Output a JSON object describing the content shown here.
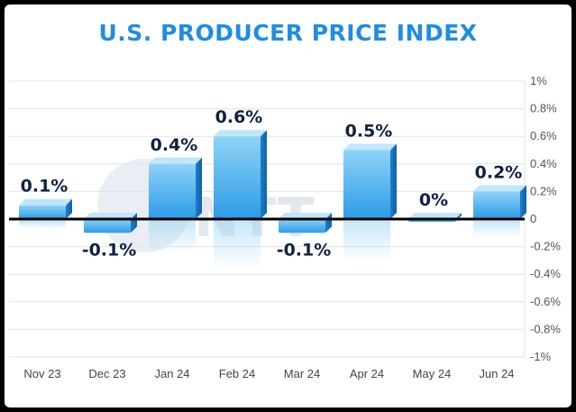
{
  "chart_data": {
    "type": "bar",
    "title": "U.S. PRODUCER PRICE INDEX",
    "categories": [
      "Nov 23",
      "Dec 23",
      "Jan 24",
      "Feb 24",
      "Mar 24",
      "Apr 24",
      "May 24",
      "Jun 24"
    ],
    "values": [
      0.1,
      -0.1,
      0.4,
      0.6,
      -0.1,
      0.5,
      0,
      0.2
    ],
    "data_labels": [
      "0.1%",
      "-0.1%",
      "0.4%",
      "0.6%",
      "-0.1%",
      "0.5%",
      "0%",
      "0.2%"
    ],
    "ylim": [
      -1,
      1
    ],
    "yticks": [
      1,
      0.8,
      0.6,
      0.4,
      0.2,
      0,
      -0.2,
      -0.4,
      -0.6,
      -0.8,
      -1
    ],
    "ytick_labels": [
      "1%",
      "0.8%",
      "0.6%",
      "0.4%",
      "0.2%",
      "0",
      "-0.2%",
      "-0.4%",
      "-0.6%",
      "-0.8%",
      "-1%"
    ],
    "y_axis_side": "right",
    "grid": true,
    "colors": {
      "title": "#1f8de3",
      "bar_top": "#8fd3f7",
      "bar_bottom": "#2c9be6",
      "label": "#0f2240",
      "zero_line": "#000000"
    }
  }
}
